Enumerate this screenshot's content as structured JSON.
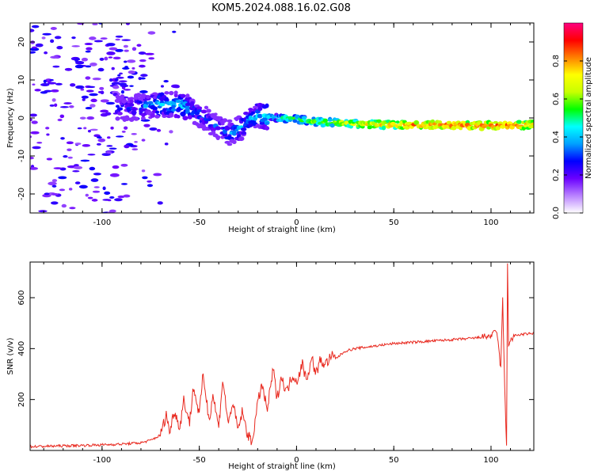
{
  "title": "KOM5.2024.088.16.02.G08",
  "chart_data": [
    {
      "type": "heatmap",
      "xlabel": "Height of straight line (km)",
      "ylabel": "Frequency (Hz)",
      "xlim": [
        -137,
        122
      ],
      "ylim": [
        -25,
        25
      ],
      "xticks": [
        "-100",
        "-50",
        "0",
        "50",
        "100"
      ],
      "xtick_values": [
        -100,
        -50,
        0,
        50,
        100
      ],
      "yticks": [
        "-20",
        "-10",
        "0",
        "10",
        "20"
      ],
      "ytick_values": [
        -20,
        -10,
        0,
        10,
        20
      ],
      "colorbar": {
        "label": "Normalized spectral amplitude",
        "range": [
          0,
          1
        ],
        "ticks": [
          "0.0",
          "0.2",
          "0.4",
          "0.6",
          "0.8"
        ],
        "tick_values": [
          0,
          0.2,
          0.4,
          0.6,
          0.8
        ],
        "colors": [
          "#ffffff",
          "#b982ff",
          "#6a00ff",
          "#0000ff",
          "#00a0ff",
          "#00ffff",
          "#00ff00",
          "#c8ff00",
          "#ffff00",
          "#ff8000",
          "#ff0000",
          "#ff0080"
        ]
      },
      "ridge": {
        "x": [
          -90,
          -80,
          -70,
          -60,
          -55,
          -50,
          -45,
          -40,
          -35,
          -30,
          -25,
          -20,
          -10,
          0,
          10,
          20,
          30,
          40,
          50,
          60,
          70,
          80,
          90,
          100,
          110,
          122
        ],
        "freq": [
          2.5,
          3.0,
          3.5,
          3.5,
          2.5,
          1.0,
          -1.0,
          -2.5,
          -4.0,
          -3.0,
          -1.0,
          0.8,
          0.0,
          -0.3,
          -1.0,
          -1.2,
          -1.5,
          -1.7,
          -1.8,
          -1.8,
          -1.8,
          -1.9,
          -2.0,
          -2.0,
          -2.0,
          -1.8
        ],
        "amplitude": [
          0.25,
          0.3,
          0.4,
          0.4,
          0.35,
          0.3,
          0.3,
          0.3,
          0.35,
          0.35,
          0.35,
          0.4,
          0.5,
          0.55,
          0.6,
          0.65,
          0.7,
          0.75,
          0.8,
          0.82,
          0.85,
          0.85,
          0.85,
          0.85,
          0.85,
          0.8
        ]
      }
    },
    {
      "type": "line",
      "xlabel": "Height of straight line (km)",
      "ylabel": "SNR (v/v)",
      "xlim": [
        -137,
        122
      ],
      "ylim": [
        0,
        740
      ],
      "xticks": [
        "-100",
        "-50",
        "0",
        "50",
        "100"
      ],
      "xtick_values": [
        -100,
        -50,
        0,
        50,
        100
      ],
      "yticks": [
        "200",
        "400",
        "600"
      ],
      "ytick_values": [
        200,
        400,
        600
      ],
      "color": "#e8281e",
      "series": [
        {
          "x": [
            -137,
            -120,
            -100,
            -90,
            -80,
            -75,
            -70,
            -67,
            -65,
            -63,
            -60,
            -58,
            -55,
            -53,
            -50,
            -48,
            -45,
            -43,
            -40,
            -38,
            -35,
            -33,
            -30,
            -28,
            -25,
            -23,
            -20,
            -18,
            -15,
            -12,
            -10,
            -8,
            -5,
            -2,
            0,
            3,
            5,
            8,
            10,
            12,
            15,
            18,
            20,
            25,
            30,
            35,
            40,
            45,
            50,
            60,
            70,
            80,
            90,
            100,
            103,
            105,
            106,
            107,
            108,
            108.5,
            109,
            110,
            112,
            115,
            122
          ],
          "y": [
            15,
            18,
            22,
            25,
            30,
            40,
            60,
            140,
            70,
            160,
            90,
            200,
            110,
            250,
            140,
            300,
            120,
            220,
            90,
            280,
            100,
            190,
            80,
            150,
            60,
            30,
            180,
            260,
            160,
            320,
            200,
            290,
            230,
            300,
            270,
            340,
            280,
            360,
            300,
            350,
            340,
            370,
            360,
            390,
            400,
            405,
            410,
            415,
            420,
            425,
            430,
            435,
            440,
            450,
            470,
            320,
            600,
            250,
            10,
            740,
            420,
            430,
            450,
            455,
            460
          ]
        }
      ]
    }
  ]
}
